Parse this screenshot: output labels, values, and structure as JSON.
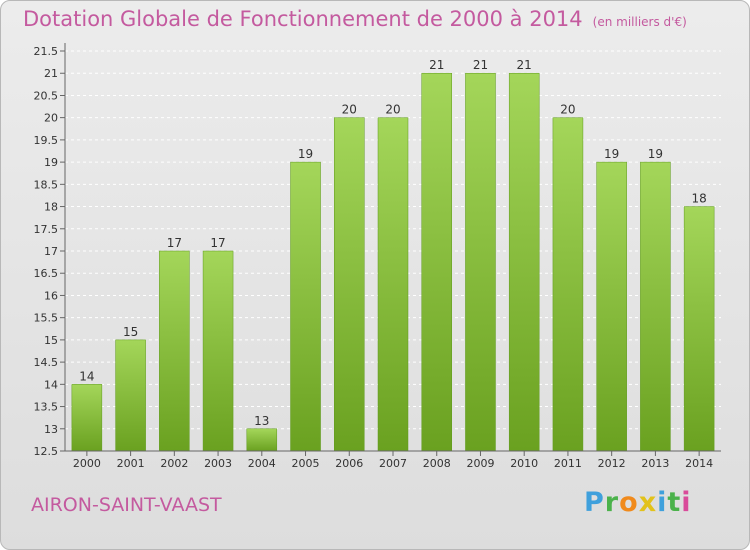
{
  "title": "Dotation Globale de Fonctionnement de 2000 à 2014",
  "unit": "(en milliers d'€)",
  "commune": "AIRON-SAINT-VAAST",
  "logo_text": "Proxiti",
  "colors": {
    "title": "#c45a9f",
    "bar_light": "#a4d65a",
    "bar_dark": "#6aa120",
    "background_top": "#ececec",
    "background_bottom": "#dddddd"
  },
  "chart_data": {
    "type": "bar",
    "title": "Dotation Globale de Fonctionnement de 2000 à 2014",
    "subtitle": "(en milliers d'€)",
    "xlabel": "",
    "ylabel": "",
    "categories": [
      "2000",
      "2001",
      "2002",
      "2003",
      "2004",
      "2005",
      "2006",
      "2007",
      "2008",
      "2009",
      "2010",
      "2011",
      "2012",
      "2013",
      "2014"
    ],
    "values": [
      14,
      15,
      17,
      17,
      13,
      19,
      20,
      20,
      21,
      21,
      21,
      20,
      19,
      19,
      18
    ],
    "ylim": [
      12.5,
      21.5
    ],
    "yticks": [
      12.5,
      13,
      13.5,
      14,
      14.5,
      15,
      15.5,
      16,
      16.5,
      17,
      17.5,
      18,
      18.5,
      19,
      19.5,
      20,
      20.5,
      21,
      21.5
    ],
    "grid": true,
    "legend": "none"
  }
}
